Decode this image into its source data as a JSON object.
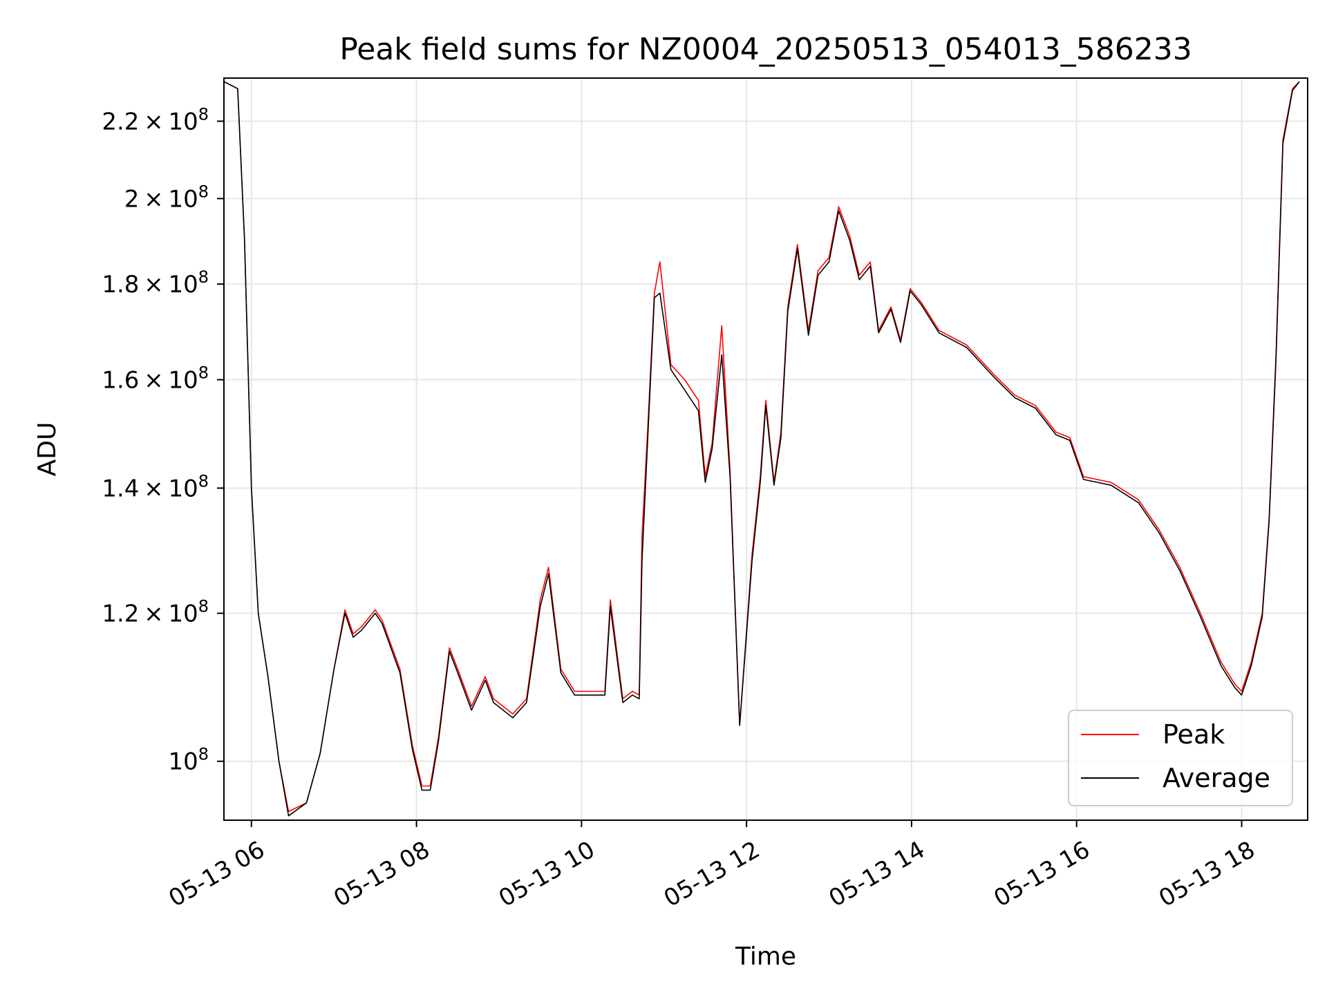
{
  "chart_data": {
    "type": "line",
    "title": "Peak field sums for NZ0004_20250513_054013_586233",
    "xlabel": "Time",
    "ylabel": "ADU",
    "yscale": "log",
    "grid": true,
    "legend_position": "lower right",
    "xlim": [
      "2025-05-13 05:40",
      "2025-05-13 18:48"
    ],
    "ylim": [
      93000000,
      232000000
    ],
    "x_ticks": [
      {
        "value": "2025-05-13 06:00",
        "label": "05-13 06"
      },
      {
        "value": "2025-05-13 08:00",
        "label": "05-13 08"
      },
      {
        "value": "2025-05-13 10:00",
        "label": "05-13 10"
      },
      {
        "value": "2025-05-13 12:00",
        "label": "05-13 12"
      },
      {
        "value": "2025-05-13 14:00",
        "label": "05-13 14"
      },
      {
        "value": "2025-05-13 16:00",
        "label": "05-13 16"
      },
      {
        "value": "2025-05-13 18:00",
        "label": "05-13 18"
      }
    ],
    "y_ticks": [
      {
        "value": 100000000,
        "mantissa": "",
        "exponent": "8"
      },
      {
        "value": 120000000,
        "mantissa": "1.2",
        "exponent": "8"
      },
      {
        "value": 140000000,
        "mantissa": "1.4",
        "exponent": "8"
      },
      {
        "value": 160000000,
        "mantissa": "1.6",
        "exponent": "8"
      },
      {
        "value": 180000000,
        "mantissa": "1.8",
        "exponent": "8"
      },
      {
        "value": 200000000,
        "mantissa": "2",
        "exponent": "8"
      },
      {
        "value": 220000000,
        "mantissa": "2.2",
        "exponent": "8"
      }
    ],
    "series": [
      {
        "name": "Peak",
        "color": "#ff0000",
        "x": [
          "2025-05-13 05:40",
          "2025-05-13 05:50",
          "2025-05-13 05:55",
          "2025-05-13 06:00",
          "2025-05-13 06:05",
          "2025-05-13 06:12",
          "2025-05-13 06:20",
          "2025-05-13 06:27",
          "2025-05-13 06:40",
          "2025-05-13 06:50",
          "2025-05-13 07:00",
          "2025-05-13 07:08",
          "2025-05-13 07:14",
          "2025-05-13 07:20",
          "2025-05-13 07:30",
          "2025-05-13 07:35",
          "2025-05-13 07:48",
          "2025-05-13 07:57",
          "2025-05-13 08:04",
          "2025-05-13 08:10",
          "2025-05-13 08:16",
          "2025-05-13 08:24",
          "2025-05-13 08:30",
          "2025-05-13 08:40",
          "2025-05-13 08:50",
          "2025-05-13 08:56",
          "2025-05-13 09:10",
          "2025-05-13 09:20",
          "2025-05-13 09:30",
          "2025-05-13 09:36",
          "2025-05-13 09:45",
          "2025-05-13 09:55",
          "2025-05-13 10:10",
          "2025-05-13 10:17",
          "2025-05-13 10:21",
          "2025-05-13 10:30",
          "2025-05-13 10:37",
          "2025-05-13 10:42",
          "2025-05-13 10:44",
          "2025-05-13 10:48",
          "2025-05-13 10:53",
          "2025-05-13 10:57",
          "2025-05-13 11:05",
          "2025-05-13 11:15",
          "2025-05-13 11:25",
          "2025-05-13 11:30",
          "2025-05-13 11:35",
          "2025-05-13 11:42",
          "2025-05-13 11:48",
          "2025-05-13 11:55",
          "2025-05-13 12:04",
          "2025-05-13 12:10",
          "2025-05-13 12:14",
          "2025-05-13 12:20",
          "2025-05-13 12:25",
          "2025-05-13 12:30",
          "2025-05-13 12:37",
          "2025-05-13 12:45",
          "2025-05-13 12:52",
          "2025-05-13 13:00",
          "2025-05-13 13:07",
          "2025-05-13 13:15",
          "2025-05-13 13:22",
          "2025-05-13 13:30",
          "2025-05-13 13:36",
          "2025-05-13 13:45",
          "2025-05-13 13:52",
          "2025-05-13 13:59",
          "2025-05-13 14:07",
          "2025-05-13 14:20",
          "2025-05-13 14:40",
          "2025-05-13 15:00",
          "2025-05-13 15:15",
          "2025-05-13 15:30",
          "2025-05-13 15:45",
          "2025-05-13 15:55",
          "2025-05-13 16:05",
          "2025-05-13 16:25",
          "2025-05-13 16:45",
          "2025-05-13 17:00",
          "2025-05-13 17:15",
          "2025-05-13 17:30",
          "2025-05-13 17:45",
          "2025-05-13 17:55",
          "2025-05-13 18:00",
          "2025-05-13 18:07",
          "2025-05-13 18:15",
          "2025-05-13 18:20",
          "2025-05-13 18:25",
          "2025-05-13 18:30",
          "2025-05-13 18:37",
          "2025-05-13 18:42"
        ],
        "values": [
          231000000,
          229000000,
          190000000,
          140000000,
          120000000,
          111000000,
          100000000,
          94000000,
          95000000,
          101000000,
          112000000,
          120500000,
          117000000,
          118000000,
          120500000,
          119000000,
          112000000,
          102000000,
          97000000,
          97000000,
          103000000,
          115000000,
          112000000,
          107000000,
          111000000,
          108000000,
          106000000,
          108000000,
          122000000,
          127000000,
          112000000,
          109000000,
          109000000,
          109000000,
          122000000,
          108000000,
          109000000,
          108500000,
          132000000,
          150000000,
          178000000,
          185000000,
          163000000,
          160000000,
          156000000,
          142000000,
          148000000,
          171000000,
          143000000,
          104500000,
          129000000,
          142000000,
          156000000,
          141000000,
          150000000,
          175000000,
          189000000,
          170000000,
          183000000,
          186000000,
          198000000,
          191000000,
          182000000,
          185000000,
          170000000,
          175000000,
          168000000,
          179000000,
          176000000,
          170000000,
          167000000,
          161000000,
          157000000,
          155000000,
          150000000,
          149000000,
          142000000,
          141000000,
          138000000,
          133000000,
          127000000,
          120000000,
          113000000,
          110000000,
          109000000,
          113000000,
          120000000,
          135000000,
          165000000,
          215000000,
          229000000,
          231000000
        ]
      },
      {
        "name": "Average",
        "color": "#000000",
        "x": [
          "2025-05-13 05:40",
          "2025-05-13 05:50",
          "2025-05-13 05:55",
          "2025-05-13 06:00",
          "2025-05-13 06:05",
          "2025-05-13 06:12",
          "2025-05-13 06:20",
          "2025-05-13 06:27",
          "2025-05-13 06:40",
          "2025-05-13 06:50",
          "2025-05-13 07:00",
          "2025-05-13 07:08",
          "2025-05-13 07:14",
          "2025-05-13 07:20",
          "2025-05-13 07:30",
          "2025-05-13 07:35",
          "2025-05-13 07:48",
          "2025-05-13 07:57",
          "2025-05-13 08:04",
          "2025-05-13 08:10",
          "2025-05-13 08:16",
          "2025-05-13 08:24",
          "2025-05-13 08:30",
          "2025-05-13 08:40",
          "2025-05-13 08:50",
          "2025-05-13 08:56",
          "2025-05-13 09:10",
          "2025-05-13 09:20",
          "2025-05-13 09:30",
          "2025-05-13 09:36",
          "2025-05-13 09:45",
          "2025-05-13 09:55",
          "2025-05-13 10:10",
          "2025-05-13 10:17",
          "2025-05-13 10:21",
          "2025-05-13 10:30",
          "2025-05-13 10:37",
          "2025-05-13 10:42",
          "2025-05-13 10:44",
          "2025-05-13 10:48",
          "2025-05-13 10:53",
          "2025-05-13 10:57",
          "2025-05-13 11:05",
          "2025-05-13 11:15",
          "2025-05-13 11:25",
          "2025-05-13 11:30",
          "2025-05-13 11:35",
          "2025-05-13 11:42",
          "2025-05-13 11:48",
          "2025-05-13 11:55",
          "2025-05-13 12:04",
          "2025-05-13 12:10",
          "2025-05-13 12:14",
          "2025-05-13 12:20",
          "2025-05-13 12:25",
          "2025-05-13 12:30",
          "2025-05-13 12:37",
          "2025-05-13 12:45",
          "2025-05-13 12:52",
          "2025-05-13 13:00",
          "2025-05-13 13:07",
          "2025-05-13 13:15",
          "2025-05-13 13:22",
          "2025-05-13 13:30",
          "2025-05-13 13:36",
          "2025-05-13 13:45",
          "2025-05-13 13:52",
          "2025-05-13 13:59",
          "2025-05-13 14:07",
          "2025-05-13 14:20",
          "2025-05-13 14:40",
          "2025-05-13 15:00",
          "2025-05-13 15:15",
          "2025-05-13 15:30",
          "2025-05-13 15:45",
          "2025-05-13 15:55",
          "2025-05-13 16:05",
          "2025-05-13 16:25",
          "2025-05-13 16:45",
          "2025-05-13 17:00",
          "2025-05-13 17:15",
          "2025-05-13 17:30",
          "2025-05-13 17:45",
          "2025-05-13 17:55",
          "2025-05-13 18:00",
          "2025-05-13 18:07",
          "2025-05-13 18:15",
          "2025-05-13 18:20",
          "2025-05-13 18:25",
          "2025-05-13 18:30",
          "2025-05-13 18:37",
          "2025-05-13 18:42"
        ],
        "values": [
          231000000,
          229000000,
          190000000,
          140000000,
          120000000,
          111000000,
          100000000,
          93500000,
          95000000,
          101000000,
          112000000,
          120000000,
          116500000,
          117500000,
          120000000,
          118500000,
          111500000,
          101500000,
          96500000,
          96500000,
          102500000,
          114500000,
          111500000,
          106500000,
          110500000,
          107500000,
          105500000,
          107500000,
          121000000,
          126000000,
          111500000,
          108500000,
          108500000,
          108500000,
          121000000,
          107500000,
          108500000,
          108000000,
          128000000,
          148000000,
          177000000,
          178000000,
          162000000,
          158000000,
          154000000,
          141000000,
          147000000,
          165000000,
          142000000,
          104500000,
          128000000,
          141000000,
          155000000,
          140500000,
          149000000,
          174000000,
          188000000,
          169000000,
          182000000,
          185000000,
          197000000,
          190000000,
          181000000,
          184000000,
          169500000,
          174500000,
          167500000,
          178500000,
          175500000,
          169500000,
          166500000,
          160500000,
          156500000,
          154500000,
          149500000,
          148500000,
          141500000,
          140500000,
          137500000,
          132500000,
          126500000,
          119500000,
          112500000,
          109500000,
          108500000,
          112500000,
          119500000,
          134500000,
          164000000,
          214000000,
          228500000,
          231000000
        ]
      }
    ]
  }
}
